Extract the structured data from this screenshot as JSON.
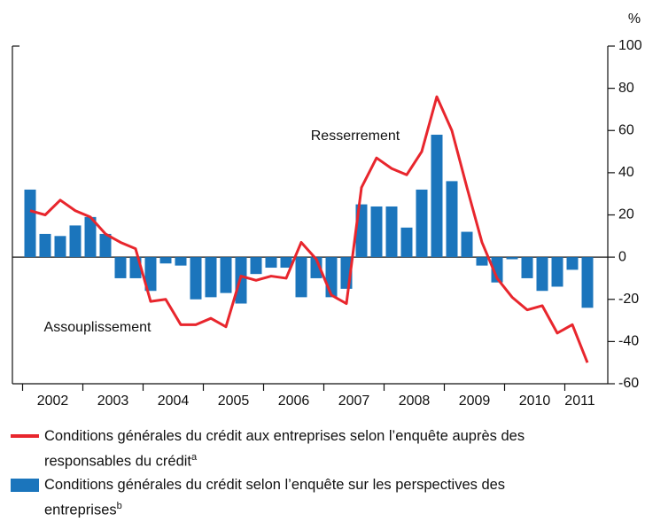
{
  "chart_data": {
    "type": "combo",
    "y_unit": "%",
    "categories": [
      "2002",
      null,
      null,
      null,
      "2003",
      null,
      null,
      null,
      "2004",
      null,
      null,
      null,
      "2005",
      null,
      null,
      null,
      "2006",
      null,
      null,
      null,
      "2007",
      null,
      null,
      null,
      "2008",
      null,
      null,
      null,
      "2009",
      null,
      null,
      null,
      "2010",
      null,
      null,
      null,
      "2011",
      null
    ],
    "series": [
      {
        "name": "Conditions générales du crédit selon l’enquête sur les perspectives des entreprises",
        "note": "b",
        "type": "bar",
        "color": "#1b75bc",
        "values": [
          32,
          11,
          10,
          15,
          19,
          11,
          -10,
          -10,
          -16,
          -3,
          -4,
          -20,
          -19,
          -17,
          -22,
          -8,
          -5,
          -5,
          -19,
          -10,
          -19,
          -15,
          25,
          24,
          24,
          14,
          32,
          58,
          36,
          12,
          -4,
          -12,
          -1,
          -10,
          -16,
          -14,
          -6,
          -24
        ]
      },
      {
        "name": "Conditions générales du crédit aux entreprises selon l’enquête auprès des responsables du crédit",
        "note": "a",
        "type": "line",
        "color": "#e8262d",
        "values": [
          22,
          20,
          27,
          22,
          19,
          11,
          7,
          4,
          -21,
          -20,
          -32,
          -32,
          -29,
          -33,
          -9,
          -11,
          -9,
          -10,
          7,
          -1,
          -18,
          -22,
          33,
          47,
          42,
          39,
          50,
          76,
          60,
          33,
          7,
          -10,
          -19,
          -25,
          -23,
          -36,
          -32,
          -50
        ]
      }
    ],
    "legend_order": [
      1,
      0
    ],
    "annotations": [
      {
        "text": "Resserrement"
      },
      {
        "text": "Assouplissement"
      }
    ],
    "ylim": [
      -60,
      100
    ],
    "yticks": [
      -60,
      -40,
      -20,
      0,
      20,
      40,
      60,
      80,
      100
    ]
  }
}
